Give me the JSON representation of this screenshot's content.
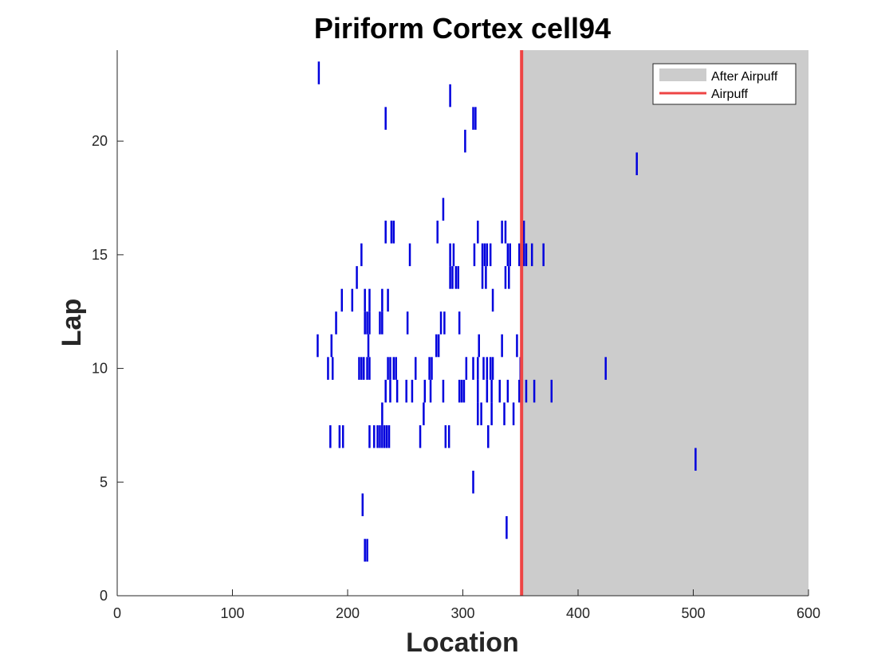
{
  "chart_data": {
    "type": "scatter",
    "title": "Piriform Cortex cell94",
    "xlabel": "Location",
    "ylabel": "Lap",
    "xlim": [
      0,
      600
    ],
    "ylim": [
      0,
      24
    ],
    "xticks": [
      0,
      100,
      200,
      300,
      400,
      500,
      600
    ],
    "yticks": [
      0,
      5,
      10,
      15,
      20
    ],
    "grid": false,
    "legend_position": "top-right",
    "legend": [
      {
        "label": "After Airpuff",
        "kind": "patch",
        "color": "#cccccc"
      },
      {
        "label": "Airpuff",
        "kind": "line",
        "color": "#ee4444"
      }
    ],
    "airpuff_location": 351,
    "shaded_region": {
      "x_from": 351,
      "x_to": 600,
      "color": "#cccccc"
    },
    "spike_color": "#0000dd",
    "spikes": [
      {
        "lap": 2,
        "locations": [
          215,
          217
        ]
      },
      {
        "lap": 3,
        "locations": [
          338
        ]
      },
      {
        "lap": 4,
        "locations": [
          213
        ]
      },
      {
        "lap": 5,
        "locations": [
          309
        ]
      },
      {
        "lap": 6,
        "locations": [
          502
        ]
      },
      {
        "lap": 7,
        "locations": [
          185,
          193,
          196,
          219,
          223,
          226,
          228,
          230,
          232,
          234,
          236,
          263,
          285,
          288,
          322
        ]
      },
      {
        "lap": 8,
        "locations": [
          230,
          266,
          313,
          316,
          325,
          336,
          344
        ]
      },
      {
        "lap": 9,
        "locations": [
          233,
          237,
          243,
          251,
          256,
          267,
          272,
          283,
          297,
          299,
          301,
          313,
          321,
          325,
          332,
          339,
          349,
          355,
          362,
          377
        ]
      },
      {
        "lap": 10,
        "locations": [
          183,
          187,
          210,
          212,
          214,
          217,
          219,
          235,
          237,
          240,
          242,
          259,
          271,
          273,
          303,
          309,
          313,
          318,
          321,
          324,
          326,
          350,
          424
        ]
      },
      {
        "lap": 11,
        "locations": [
          174,
          186,
          218,
          277,
          279,
          314,
          334,
          347
        ]
      },
      {
        "lap": 12,
        "locations": [
          190,
          215,
          217,
          219,
          228,
          230,
          252,
          281,
          284,
          297
        ]
      },
      {
        "lap": 13,
        "locations": [
          195,
          204,
          215,
          219,
          230,
          235,
          326
        ]
      },
      {
        "lap": 14,
        "locations": [
          208,
          289,
          291,
          294,
          296,
          317,
          320,
          337,
          340
        ]
      },
      {
        "lap": 15,
        "locations": [
          212,
          254,
          289,
          292,
          310,
          317,
          319,
          321,
          324,
          339,
          341,
          349,
          353,
          355,
          360,
          370
        ]
      },
      {
        "lap": 16,
        "locations": [
          233,
          238,
          240,
          278,
          313,
          334,
          337,
          351,
          353
        ]
      },
      {
        "lap": 17,
        "locations": [
          283
        ]
      },
      {
        "lap": 19,
        "locations": [
          451
        ]
      },
      {
        "lap": 20,
        "locations": [
          302
        ]
      },
      {
        "lap": 21,
        "locations": [
          233,
          309,
          311
        ]
      },
      {
        "lap": 22,
        "locations": [
          289
        ]
      },
      {
        "lap": 23,
        "locations": [
          175
        ]
      }
    ]
  }
}
